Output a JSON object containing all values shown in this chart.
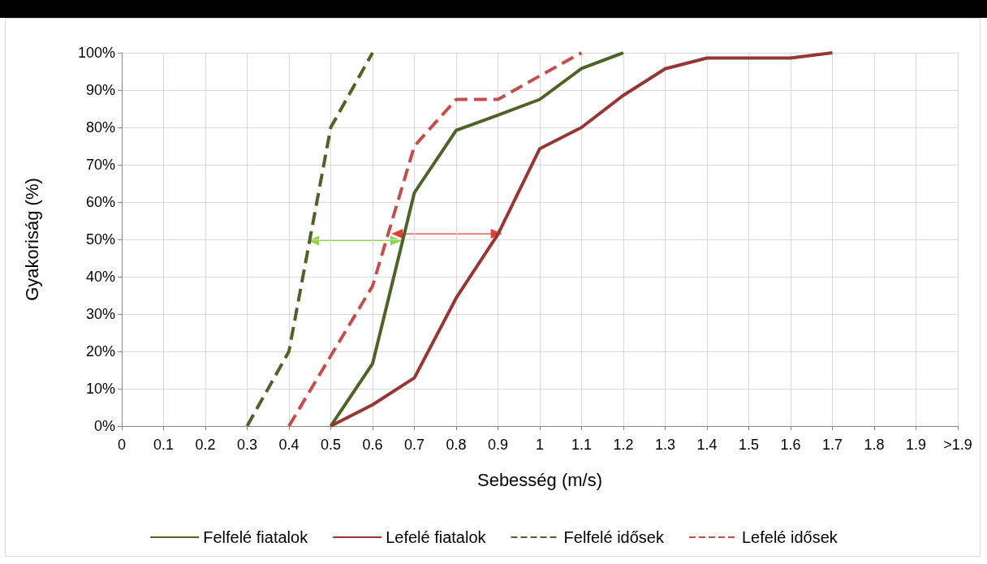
{
  "chart_data": {
    "type": "line",
    "xlabel": "Sebesség (m/s)",
    "ylabel": "Gyakoriság (%)",
    "categories": [
      "0",
      "0.1",
      "0.2",
      "0.3",
      "0.4",
      "0.5",
      "0.6",
      "0.7",
      "0.8",
      "0.9",
      "1",
      "1.1",
      "1.2",
      "1.3",
      "1.4",
      "1.5",
      "1.6",
      "1.7",
      "1.8",
      "1.9",
      ">1.9"
    ],
    "series": [
      {
        "name": "Felfelé fiatalok",
        "color": "#4f6228",
        "line_style": "solid",
        "values": [
          null,
          null,
          null,
          null,
          null,
          0,
          16.7,
          62.5,
          79.2,
          83.3,
          87.5,
          95.8,
          100,
          null,
          null,
          null,
          null,
          null,
          null,
          null,
          null
        ]
      },
      {
        "name": "Lefelé fiatalok",
        "color": "#953735",
        "line_style": "solid",
        "values": [
          null,
          null,
          null,
          null,
          null,
          0,
          5.7,
          12.9,
          34.3,
          51.4,
          74.3,
          80,
          88.6,
          95.7,
          98.6,
          98.6,
          98.6,
          100,
          null,
          null,
          null
        ]
      },
      {
        "name": "Felfelé idősek",
        "color": "#4f6228",
        "line_style": "dashed",
        "values": [
          null,
          null,
          null,
          0,
          20,
          80,
          100,
          null,
          null,
          null,
          null,
          null,
          null,
          null,
          null,
          null,
          null,
          null,
          null,
          null,
          null
        ]
      },
      {
        "name": "Lefelé idősek",
        "color": "#c0504d",
        "line_style": "dashed",
        "values": [
          null,
          null,
          null,
          null,
          0,
          18.8,
          37.5,
          75,
          87.5,
          87.5,
          93.8,
          100,
          null,
          null,
          null,
          null,
          null,
          null,
          null,
          null,
          null
        ]
      }
    ],
    "ylim": [
      0,
      100
    ],
    "yticks": [
      {
        "value": 0,
        "label": "0%"
      },
      {
        "value": 10,
        "label": "10%"
      },
      {
        "value": 20,
        "label": "20%"
      },
      {
        "value": 30,
        "label": "30%"
      },
      {
        "value": 40,
        "label": "40%"
      },
      {
        "value": 50,
        "label": "50%"
      },
      {
        "value": 60,
        "label": "60%"
      },
      {
        "value": 70,
        "label": "70%"
      },
      {
        "value": 80,
        "label": "80%"
      },
      {
        "value": 90,
        "label": "90%"
      },
      {
        "value": 100,
        "label": "100%"
      }
    ],
    "grid": true,
    "legend": "bottom",
    "marker": "none"
  }
}
